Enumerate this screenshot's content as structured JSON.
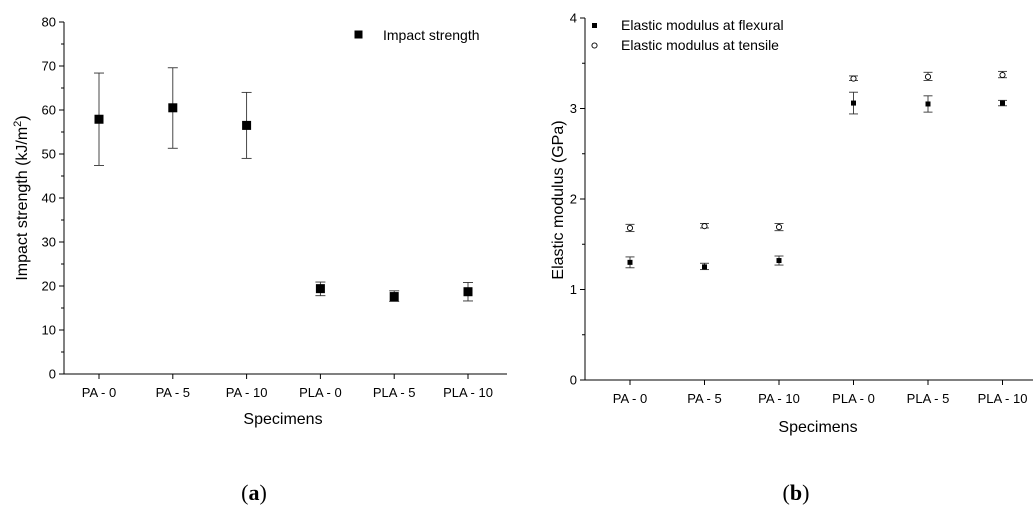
{
  "chart_data": [
    {
      "type": "scatter",
      "caption_letter": "a",
      "xlabel": "Specimens",
      "ylabel_main": "Impact strength (kJ/m",
      "ylabel_sup": "2",
      "ylabel_tail": ")",
      "ylim": [
        0,
        80
      ],
      "yticks": [
        0,
        10,
        20,
        30,
        40,
        50,
        60,
        70,
        80
      ],
      "categories": [
        "PA - 0",
        "PA - 5",
        "PA - 10",
        "PLA - 0",
        "PLA - 5",
        "PLA - 10"
      ],
      "legend_position": "top-right",
      "series": [
        {
          "name": "Impact strength",
          "marker": "filled-square",
          "values": [
            57.9,
            60.5,
            56.5,
            19.4,
            17.6,
            18.7
          ],
          "err_low": [
            47.4,
            51.3,
            49.0,
            17.8,
            16.5,
            16.6
          ],
          "err_high": [
            68.4,
            69.6,
            64.0,
            20.9,
            18.9,
            20.8
          ]
        }
      ]
    },
    {
      "type": "scatter",
      "caption_letter": "b",
      "xlabel": "Specimens",
      "ylabel": "Elastic modulus (GPa)",
      "ylim": [
        0,
        4
      ],
      "yticks": [
        0,
        1,
        2,
        3,
        4
      ],
      "categories": [
        "PA - 0",
        "PA - 5",
        "PA - 10",
        "PLA - 0",
        "PLA - 5",
        "PLA - 10"
      ],
      "legend_position": "top-left",
      "series": [
        {
          "name": "Elastic modulus at flexural",
          "marker": "filled-square",
          "values": [
            1.3,
            1.25,
            1.32,
            3.06,
            3.05,
            3.06
          ],
          "err_low": [
            1.24,
            1.22,
            1.27,
            2.94,
            2.96,
            3.03
          ],
          "err_high": [
            1.36,
            1.29,
            1.37,
            3.18,
            3.14,
            3.09
          ]
        },
        {
          "name": "Elastic modulus at tensile",
          "marker": "open-circle",
          "values": [
            1.68,
            1.7,
            1.69,
            3.33,
            3.35,
            3.37
          ],
          "err_low": [
            1.64,
            1.68,
            1.65,
            3.31,
            3.31,
            3.34
          ],
          "err_high": [
            1.72,
            1.73,
            1.73,
            3.36,
            3.4,
            3.41
          ]
        }
      ]
    }
  ]
}
